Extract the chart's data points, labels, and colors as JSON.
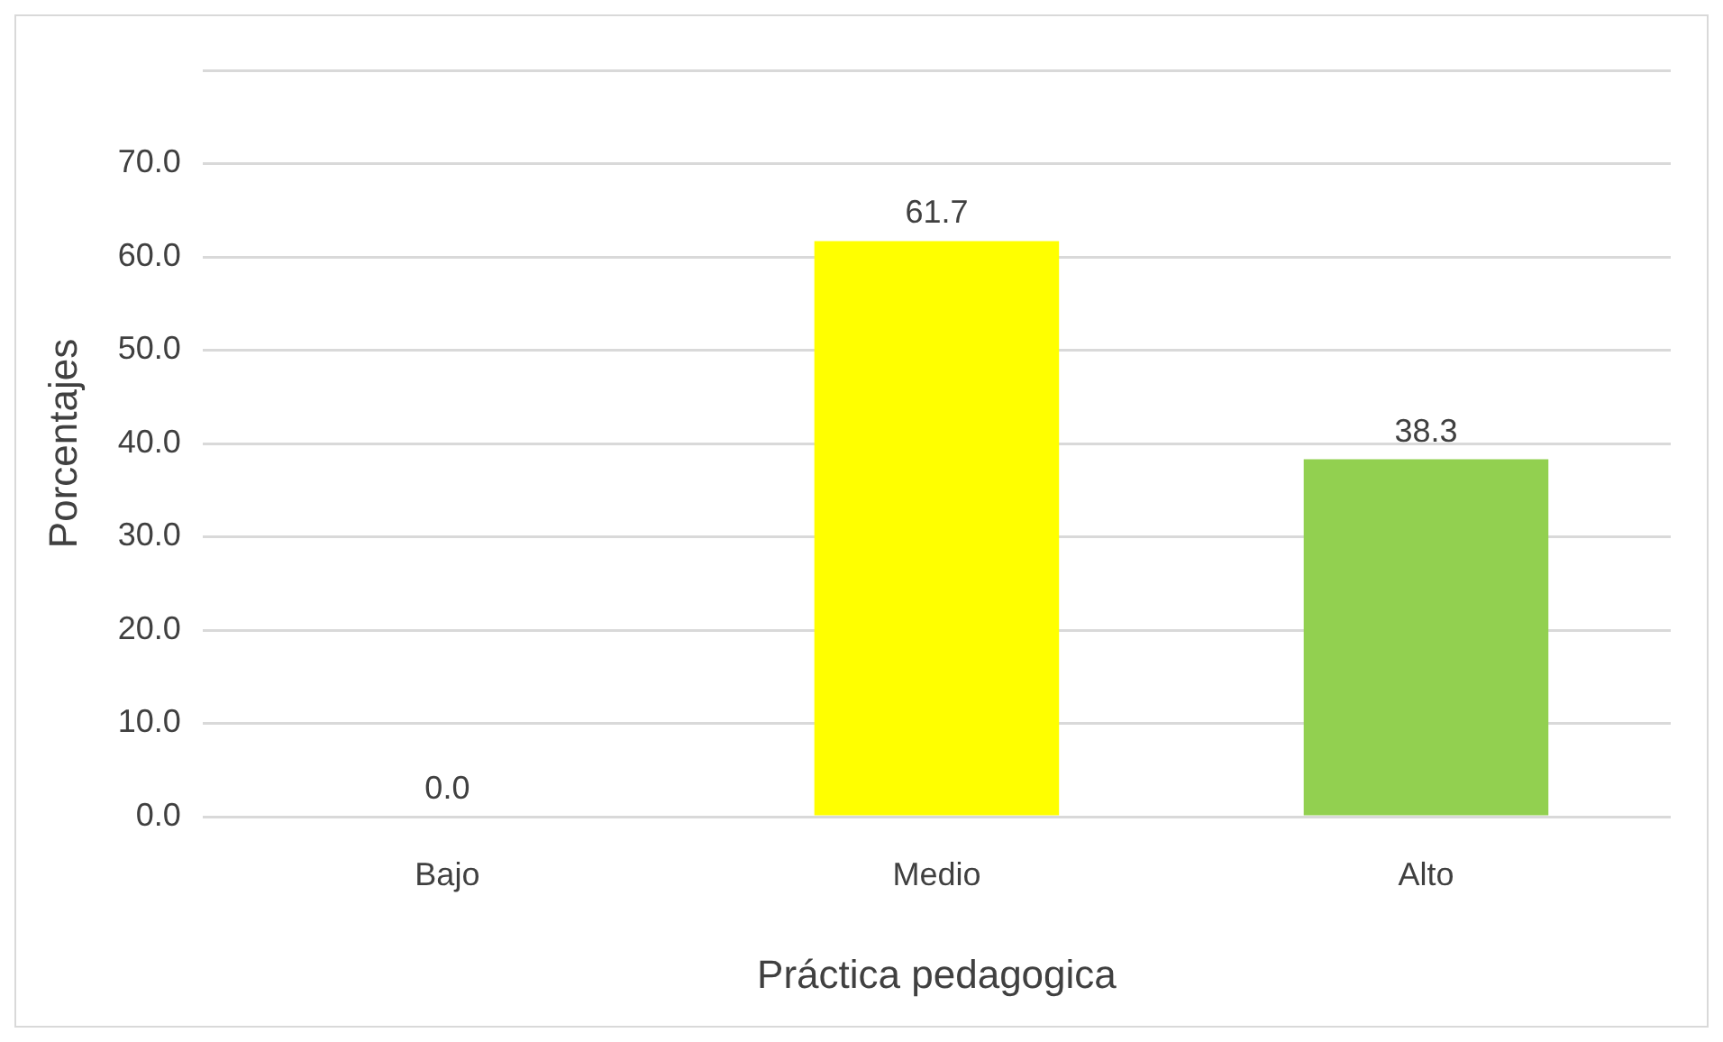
{
  "chart_data": {
    "type": "bar",
    "xlabel": "Práctica pedagogica",
    "ylabel": "Porcentajes",
    "categories": [
      "Bajo",
      "Medio",
      "Alto"
    ],
    "values": [
      0,
      61.7,
      38.3
    ],
    "colors": [
      "#c42b00",
      "#ffff00",
      "#92d050"
    ],
    "value_labels": [
      "0.0",
      "61.7",
      "38.3"
    ],
    "ylim": [
      0,
      80
    ],
    "yticks": [
      {
        "value": 0,
        "label": "0.0"
      },
      {
        "value": 10,
        "label": "10.0"
      },
      {
        "value": 20,
        "label": "20.0"
      },
      {
        "value": 30,
        "label": "30.0"
      },
      {
        "value": 40,
        "label": "40.0"
      },
      {
        "value": 50,
        "label": "50.0"
      },
      {
        "value": 60,
        "label": "60.0"
      },
      {
        "value": 70,
        "label": "70.0"
      },
      {
        "value": 80,
        "label": null
      }
    ],
    "grid": "y",
    "legend": false
  }
}
